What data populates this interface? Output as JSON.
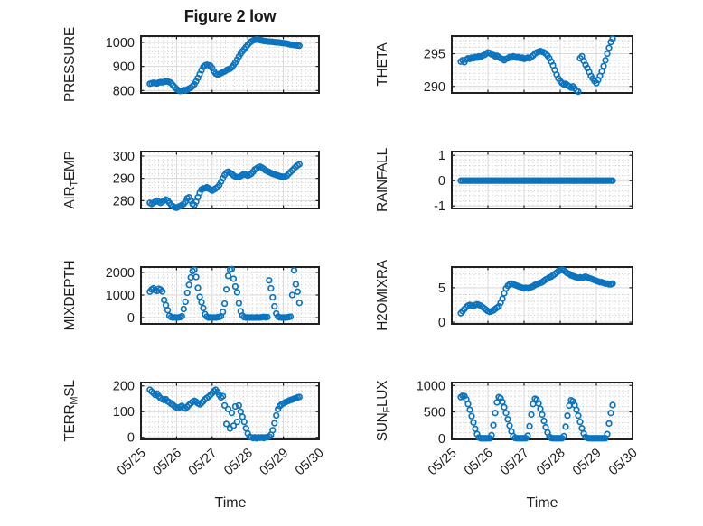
{
  "figure": {
    "title": "Figure 2 low",
    "xlabel": "Time",
    "xtick_labels": [
      "05/25",
      "05/26",
      "05/27",
      "05/28",
      "05/29",
      "05/30"
    ],
    "marker_color": "#0c74be",
    "axis_color": "#212121",
    "major_grid_color": "#d9d9d9",
    "minor_grid_color": "#bdbdbd",
    "text_color": "#1f1f1f"
  },
  "chart_data": [
    {
      "type": "scatter",
      "name": "PRESSURE",
      "ylabel": {
        "pre": "PRESSURE",
        "sub": "",
        "post": ""
      },
      "yticks": [
        800,
        900,
        1000
      ],
      "ylim": [
        790,
        1026
      ],
      "minor_y": 20,
      "xlim": [
        0,
        5
      ],
      "xticks": [
        0,
        1,
        2,
        3,
        4,
        5
      ],
      "minor_x": 0.125,
      "x0": 0.25,
      "dx": 0.05,
      "y": [
        828,
        830,
        832,
        831,
        829,
        833,
        835,
        834,
        836,
        838,
        837,
        835,
        830,
        822,
        814,
        806,
        801,
        798,
        799,
        802,
        800,
        804,
        808,
        812,
        818,
        826,
        838,
        852,
        868,
        884,
        898,
        904,
        907,
        905,
        903,
        893,
        880,
        870,
        866,
        868,
        872,
        876,
        879,
        884,
        888,
        890,
        896,
        905,
        916,
        928,
        941,
        953,
        963,
        972,
        981,
        990,
        998,
        1004,
        1008,
        1010,
        1012,
        1011,
        1009,
        1008,
        1006,
        1005,
        1004,
        1003,
        1003,
        1002,
        1001,
        1000,
        1000,
        999,
        998,
        997,
        996,
        995,
        993,
        991,
        990,
        989,
        988,
        987,
        986
      ]
    },
    {
      "type": "scatter",
      "name": "THETA",
      "ylabel": {
        "pre": "THETA",
        "sub": "",
        "post": ""
      },
      "yticks": [
        290,
        295
      ],
      "ylim": [
        289.0,
        297.7
      ],
      "minor_y": 1,
      "xlim": [
        0,
        5
      ],
      "xticks": [
        0,
        1,
        2,
        3,
        4,
        5
      ],
      "minor_x": 0.125,
      "x0": 0.25,
      "dx": 0.05,
      "y": [
        293.8,
        294.0,
        293.7,
        294.1,
        294.3,
        294.2,
        294.4,
        294.3,
        294.5,
        294.4,
        294.6,
        294.5,
        294.7,
        294.8,
        295.0,
        295.2,
        295.1,
        294.9,
        294.8,
        294.6,
        294.7,
        294.5,
        294.3,
        294.2,
        294.0,
        294.2,
        294.3,
        294.5,
        294.4,
        294.6,
        294.5,
        294.4,
        294.5,
        294.3,
        294.4,
        294.2,
        294.3,
        294.4,
        294.3,
        294.5,
        294.7,
        295.0,
        295.2,
        295.3,
        295.4,
        295.3,
        295.2,
        295.0,
        294.7,
        294.3,
        293.8,
        293.2,
        292.5,
        291.8,
        291.2,
        290.8,
        290.5,
        290.3,
        290.4,
        290.2,
        290.0,
        289.8,
        290.0,
        289.7,
        289.4,
        289.2,
        294.3,
        294.6,
        293.9,
        293.3,
        292.8,
        292.2,
        291.6,
        291.2,
        290.8,
        290.5,
        291.0,
        291.6,
        292.3,
        293.1,
        294.0,
        295.0,
        295.9,
        296.8,
        297.3
      ]
    },
    {
      "type": "scatter",
      "name": "AIR_TEMP",
      "ylabel": {
        "pre": "AIR",
        "sub": "T",
        "post": "EMP"
      },
      "yticks": [
        280,
        290,
        300
      ],
      "ylim": [
        276.5,
        302
      ],
      "minor_y": 2,
      "xlim": [
        0,
        5
      ],
      "xticks": [
        0,
        1,
        2,
        3,
        4,
        5
      ],
      "minor_x": 0.125,
      "x0": 0.25,
      "dx": 0.05,
      "y": [
        279,
        278.5,
        279,
        279.5,
        280,
        279.5,
        279,
        279.5,
        280,
        280.5,
        280,
        279,
        278,
        277.5,
        277,
        276.8,
        277.2,
        277.6,
        278,
        278.5,
        279.5,
        281,
        281.5,
        280,
        278.5,
        278,
        279.5,
        281.5,
        283.5,
        285,
        285.5,
        285.5,
        286,
        285.5,
        285,
        284.5,
        285,
        285.5,
        286,
        287,
        288.5,
        290,
        291.5,
        292.5,
        293,
        292.5,
        292,
        291.3,
        290.8,
        290.5,
        290.6,
        291,
        291.5,
        292,
        291.6,
        291.2,
        291.6,
        292,
        293,
        294,
        294.5,
        295,
        295.2,
        294.8,
        294.2,
        293.6,
        293.2,
        292.8,
        292.4,
        292,
        291.8,
        291.5,
        291.2,
        291,
        290.8,
        290.7,
        290.8,
        291.2,
        292,
        292.8,
        293.6,
        294.4,
        295.2,
        295.8,
        296.3
      ]
    },
    {
      "type": "scatter",
      "name": "RAINFALL",
      "ylabel": {
        "pre": "RAINFALL",
        "sub": "",
        "post": ""
      },
      "yticks": [
        -1,
        0,
        1
      ],
      "ylim": [
        -1.1,
        1.15
      ],
      "minor_y": 0.2,
      "xlim": [
        0,
        5
      ],
      "xticks": [
        0,
        1,
        2,
        3,
        4,
        5
      ],
      "minor_x": 0.125,
      "x0": 0.25,
      "dx": 0.05,
      "y": [
        0,
        0,
        0,
        0,
        0,
        0,
        0,
        0,
        0,
        0,
        0,
        0,
        0,
        0,
        0,
        0,
        0,
        0,
        0,
        0,
        0,
        0,
        0,
        0,
        0,
        0,
        0,
        0,
        0,
        0,
        0,
        0,
        0,
        0,
        0,
        0,
        0,
        0,
        0,
        0,
        0,
        0,
        0,
        0,
        0,
        0,
        0,
        0,
        0,
        0,
        0,
        0,
        0,
        0,
        0,
        0,
        0,
        0,
        0,
        0,
        0,
        0,
        0,
        0,
        0,
        0,
        0,
        0,
        0,
        0,
        0,
        0,
        0,
        0,
        0,
        0,
        0,
        0,
        0,
        0,
        0,
        0,
        0,
        0,
        0
      ]
    },
    {
      "type": "scatter",
      "name": "MIXDEPTH",
      "ylabel": {
        "pre": "MIXDEPTH",
        "sub": "",
        "post": ""
      },
      "yticks": [
        0,
        1000,
        2000
      ],
      "ylim": [
        -280,
        2240
      ],
      "minor_y": 200,
      "xlim": [
        0,
        5
      ],
      "xticks": [
        0,
        1,
        2,
        3,
        4,
        5
      ],
      "minor_x": 0.125,
      "x0": 0.25,
      "dx": 0.05,
      "y": [
        1150,
        1250,
        1300,
        1220,
        1180,
        1280,
        1240,
        1160,
        780,
        550,
        330,
        80,
        20,
        0,
        10,
        0,
        5,
        20,
        60,
        380,
        700,
        1100,
        1450,
        1780,
        2060,
        2120,
        1800,
        1320,
        920,
        680,
        420,
        150,
        40,
        0,
        10,
        0,
        5,
        0,
        15,
        30,
        60,
        250,
        620,
        1250,
        1850,
        2120,
        2150,
        1720,
        1380,
        1120,
        640,
        280,
        90,
        20,
        0,
        10,
        0,
        5,
        0,
        0,
        10,
        0,
        5,
        15,
        30,
        10,
        25,
        1650,
        1300,
        900,
        500,
        180,
        40,
        10,
        0,
        5,
        0,
        10,
        20,
        40,
        1000,
        2090,
        1480,
        1150,
        650
      ]
    },
    {
      "type": "scatter",
      "name": "H2OMIXRA",
      "ylabel": {
        "pre": "H2OMIXRA",
        "sub": "",
        "post": ""
      },
      "yticks": [
        0,
        5
      ],
      "ylim": [
        -0.25,
        8.0
      ],
      "minor_y": 1,
      "xlim": [
        0,
        5
      ],
      "xticks": [
        0,
        1,
        2,
        3,
        4,
        5
      ],
      "minor_x": 0.125,
      "x0": 0.25,
      "dx": 0.05,
      "y": [
        1.3,
        1.6,
        1.9,
        2.2,
        2.4,
        2.5,
        2.4,
        2.3,
        2.5,
        2.6,
        2.5,
        2.4,
        2.2,
        2.0,
        1.8,
        1.6,
        1.5,
        1.6,
        1.7,
        1.9,
        2.1,
        2.3,
        2.8,
        3.4,
        4.2,
        4.9,
        5.3,
        5.5,
        5.6,
        5.5,
        5.4,
        5.3,
        5.2,
        5.1,
        5.0,
        4.9,
        5.0,
        4.9,
        5.0,
        5.1,
        5.2,
        5.4,
        5.5,
        5.6,
        5.7,
        5.8,
        6.0,
        6.2,
        6.3,
        6.5,
        6.6,
        6.8,
        7.0,
        7.2,
        7.4,
        7.5,
        7.6,
        7.5,
        7.3,
        7.1,
        7.0,
        6.8,
        6.7,
        6.6,
        6.5,
        6.4,
        6.5,
        6.4,
        6.5,
        6.6,
        6.5,
        6.4,
        6.3,
        6.2,
        6.1,
        6.0,
        5.9,
        5.8,
        5.8,
        5.7,
        5.6,
        5.6,
        5.5,
        5.5,
        5.6
      ]
    },
    {
      "type": "scatter",
      "name": "TERR_MSL",
      "ylabel": {
        "pre": "TERR",
        "sub": "M",
        "post": "SL"
      },
      "yticks": [
        0,
        100,
        200
      ],
      "ylim": [
        -8,
        213
      ],
      "minor_y": 20,
      "xlim": [
        0,
        5
      ],
      "xticks": [
        0,
        1,
        2,
        3,
        4,
        5
      ],
      "minor_x": 0.125,
      "x0": 0.25,
      "dx": 0.05,
      "y": [
        185,
        178,
        172,
        165,
        170,
        160,
        152,
        148,
        145,
        148,
        140,
        136,
        130,
        126,
        120,
        116,
        113,
        118,
        122,
        115,
        112,
        118,
        126,
        132,
        138,
        142,
        138,
        132,
        128,
        133,
        140,
        148,
        153,
        158,
        165,
        172,
        180,
        185,
        176,
        165,
        155,
        160,
        124,
        52,
        110,
        34,
        95,
        45,
        120,
        60,
        124,
        100,
        80,
        60,
        35,
        15,
        2,
        0,
        -3,
        0,
        -4,
        0,
        -2,
        0,
        -3,
        0,
        0,
        3,
        10,
        28,
        55,
        85,
        110,
        122,
        128,
        132,
        136,
        139,
        142,
        145,
        147,
        150,
        152,
        155,
        157
      ]
    },
    {
      "type": "scatter",
      "name": "SUN_FLUX",
      "ylabel": {
        "pre": "SUN",
        "sub": "F",
        "post": "LUX"
      },
      "yticks": [
        0,
        500,
        1000
      ],
      "ylim": [
        -20,
        1056
      ],
      "minor_y": 100,
      "xlim": [
        0,
        5
      ],
      "xticks": [
        0,
        1,
        2,
        3,
        4,
        5
      ],
      "minor_x": 0.125,
      "x0": 0.25,
      "dx": 0.05,
      "y": [
        780,
        805,
        800,
        740,
        650,
        540,
        420,
        300,
        180,
        80,
        15,
        0,
        0,
        0,
        0,
        0,
        0,
        60,
        250,
        480,
        680,
        780,
        760,
        690,
        590,
        480,
        360,
        240,
        130,
        40,
        5,
        0,
        0,
        0,
        0,
        0,
        0,
        50,
        230,
        450,
        650,
        750,
        730,
        660,
        560,
        450,
        330,
        210,
        110,
        30,
        5,
        0,
        0,
        0,
        0,
        0,
        0,
        40,
        220,
        430,
        620,
        720,
        700,
        630,
        540,
        430,
        310,
        190,
        90,
        25,
        5,
        0,
        0,
        0,
        0,
        0,
        0,
        0,
        0,
        0,
        0,
        80,
        280,
        480,
        630
      ]
    }
  ]
}
